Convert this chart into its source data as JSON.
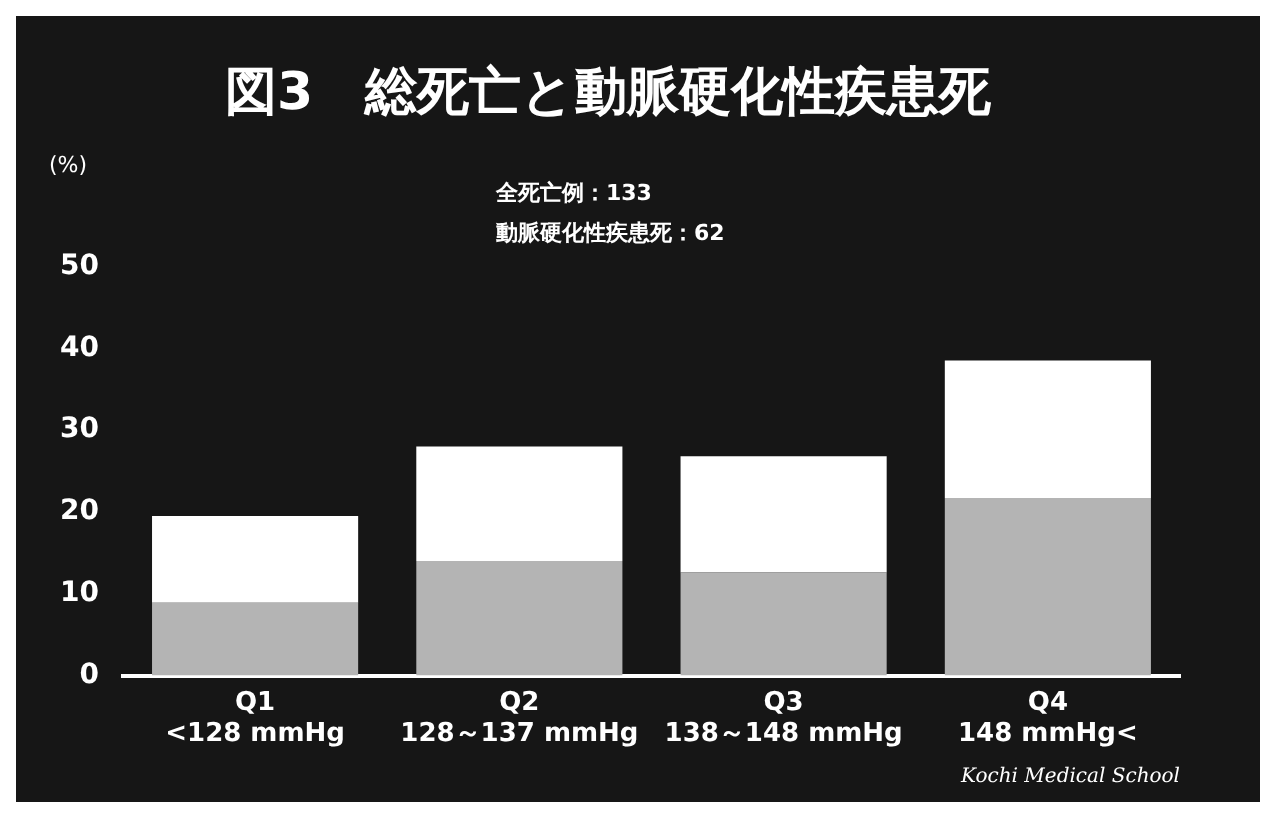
{
  "chart_data": {
    "type": "bar",
    "title": "図3　総死亡と動脈硬化性疾患死",
    "ylabel": "(%)",
    "stacked": true,
    "categories": [
      "Q1\n<128 mmHg",
      "Q2\n128～137 mmHg",
      "Q3\n138～148 mmHg",
      "Q4\n148 mmHg<"
    ],
    "series": [
      {
        "color": "#b4b4b4",
        "values": [
          8.9,
          14,
          12.6,
          21.7
        ]
      },
      {
        "color": "#ffffff",
        "values": [
          10.6,
          14,
          14.2,
          16.8
        ]
      }
    ],
    "ylim": [
      0,
      50
    ],
    "yticks": [
      0,
      10,
      20,
      30,
      40,
      50
    ],
    "annotations": [
      "全死亡例：133",
      "動脈硬化性疾患死：62",
      "Kochi Medical School"
    ]
  }
}
